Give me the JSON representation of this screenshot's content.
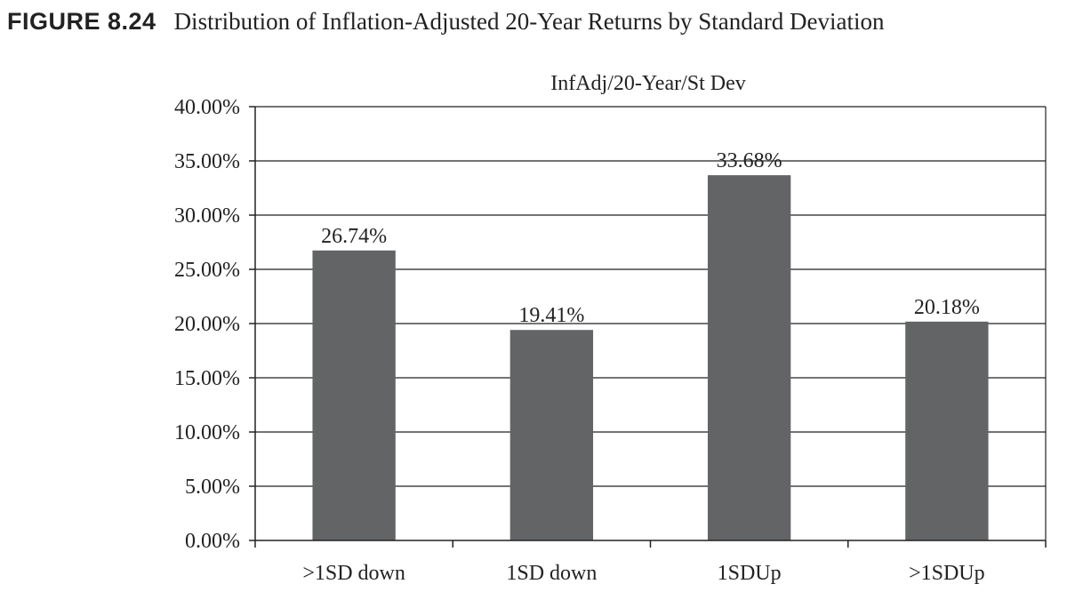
{
  "figure": {
    "number": "FIGURE 8.24",
    "title": "Distribution of Inflation-Adjusted 20-Year Returns by Standard Deviation"
  },
  "chart_data": {
    "type": "bar",
    "title": "InfAdj/20-Year/St Dev",
    "xlabel": "",
    "ylabel": "",
    "categories": [
      ">1SD down",
      "1SD down",
      "1SDUp",
      ">1SDUp"
    ],
    "values": [
      26.74,
      19.41,
      33.68,
      20.18
    ],
    "value_labels": [
      "26.74%",
      "19.41%",
      "33.68%",
      "20.18%"
    ],
    "ylim": [
      0,
      40
    ],
    "yticks": [
      0,
      5,
      10,
      15,
      20,
      25,
      30,
      35,
      40
    ],
    "ytick_labels": [
      "0.00%",
      "5.00%",
      "10.00%",
      "15.00%",
      "20.00%",
      "25.00%",
      "30.00%",
      "35.00%",
      "40.00%"
    ],
    "grid": true,
    "legend": "none",
    "colors": {
      "bar": "#636466",
      "grid": "#222222",
      "axis": "#222222"
    }
  }
}
